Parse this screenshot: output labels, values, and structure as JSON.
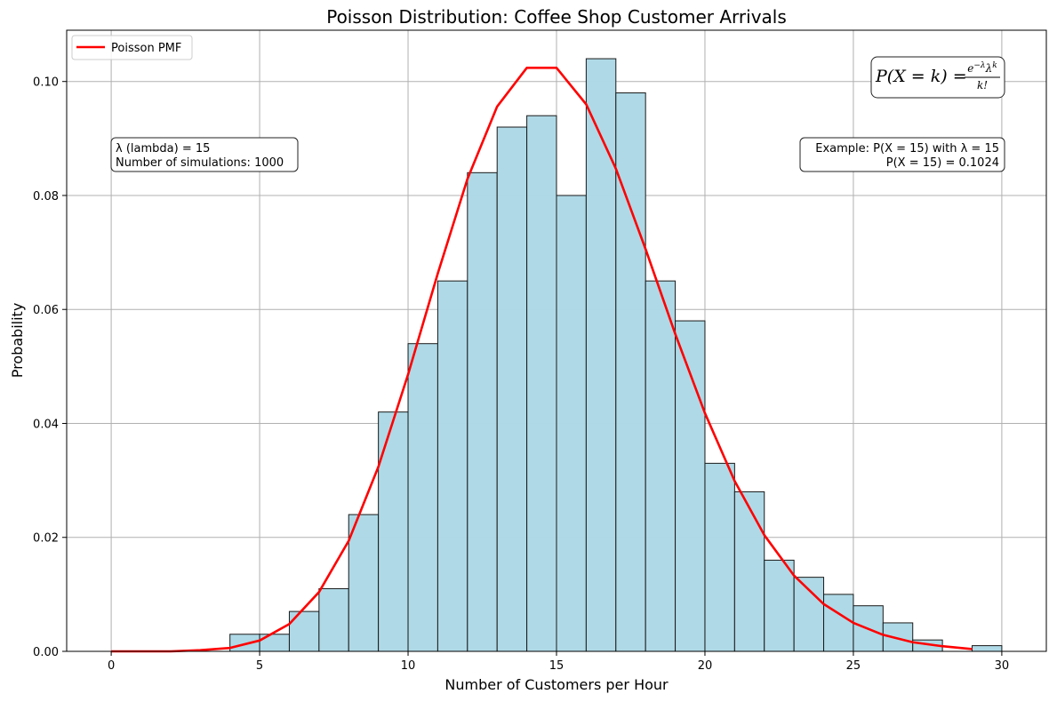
{
  "chart_data": {
    "type": "bar",
    "title": "Poisson Distribution: Coffee Shop Customer Arrivals",
    "xlabel": "Number of Customers per Hour",
    "ylabel": "Probability",
    "xlim": [
      -1.5,
      31.5
    ],
    "ylim": [
      0,
      0.109
    ],
    "xticks": [
      0,
      5,
      10,
      15,
      20,
      25,
      30
    ],
    "xtick_labels": [
      "0",
      "5",
      "10",
      "15",
      "20",
      "25",
      "30"
    ],
    "yticks": [
      0,
      0.02,
      0.04,
      0.06,
      0.08,
      0.1
    ],
    "ytick_labels": [
      "0.00",
      "0.02",
      "0.04",
      "0.06",
      "0.08",
      "0.10"
    ],
    "grid": true,
    "histogram": {
      "name": "Simulated arrivals",
      "bin_edges": [
        4,
        5,
        6,
        7,
        8,
        9,
        10,
        11,
        12,
        13,
        14,
        15,
        16,
        17,
        18,
        19,
        20,
        21,
        22,
        23,
        24,
        25,
        26,
        27,
        28,
        29,
        30
      ],
      "values": [
        0.003,
        0.003,
        0.007,
        0.011,
        0.024,
        0.042,
        0.054,
        0.065,
        0.084,
        0.092,
        0.094,
        0.08,
        0.104,
        0.098,
        0.065,
        0.058,
        0.033,
        0.028,
        0.016,
        0.013,
        0.01,
        0.008,
        0.005,
        0.002,
        0.0,
        0.001
      ],
      "fill": "#add8e6",
      "edge": "#1a1a1a"
    },
    "series": [
      {
        "name": "Poisson PMF",
        "type": "line",
        "color": "#ff0000",
        "x": [
          0,
          1,
          2,
          3,
          4,
          5,
          6,
          7,
          8,
          9,
          10,
          11,
          12,
          13,
          14,
          15,
          16,
          17,
          18,
          19,
          20,
          21,
          22,
          23,
          24,
          25,
          26,
          27,
          28,
          29
        ],
        "values": [
          0.0,
          0.0,
          0.0,
          0.0002,
          0.0006,
          0.0019,
          0.0048,
          0.0104,
          0.0194,
          0.0324,
          0.0486,
          0.0663,
          0.0829,
          0.0956,
          0.1024,
          0.1024,
          0.096,
          0.0847,
          0.0706,
          0.0557,
          0.0418,
          0.0299,
          0.0204,
          0.0133,
          0.0083,
          0.005,
          0.0029,
          0.0016,
          0.0009,
          0.0004
        ]
      }
    ],
    "legend": {
      "position": "top-left",
      "entries": [
        "Poisson PMF"
      ]
    },
    "annotations": {
      "params_line1": "λ (lambda) = 15",
      "params_line2": "Number of simulations: 1000",
      "example_line1": "Example: P(X = 15) with λ = 15",
      "example_line2": "P(X = 15) = 0.1024",
      "formula": "P(X = k) = e^{-λ}λ^k / k!"
    }
  }
}
